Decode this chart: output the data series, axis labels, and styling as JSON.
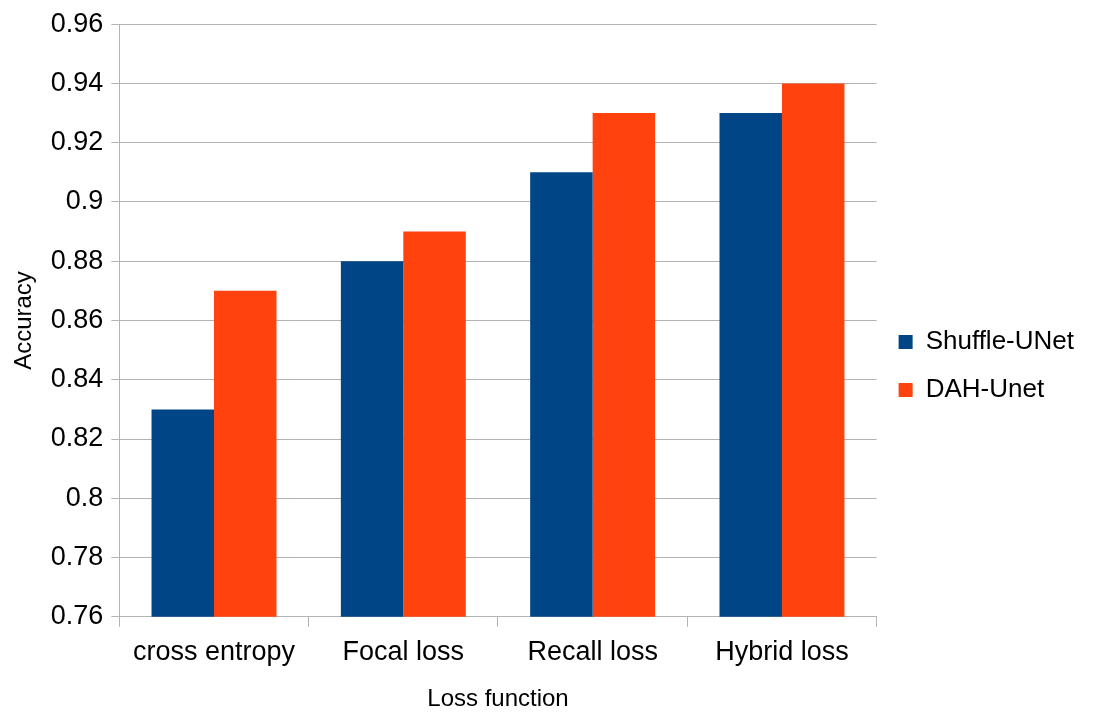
{
  "chart_data": {
    "type": "bar",
    "xlabel": "Loss function",
    "ylabel": "Accuracy",
    "categories": [
      "cross entropy",
      "Focal loss",
      "Recall loss",
      "Hybrid loss"
    ],
    "series": [
      {
        "name": "Shuffle-UNet",
        "color": "#004586",
        "values": [
          0.83,
          0.88,
          0.91,
          0.93
        ]
      },
      {
        "name": "DAH-Unet",
        "color": "#ff420e",
        "values": [
          0.87,
          0.89,
          0.93,
          0.94
        ]
      }
    ],
    "ylim": [
      0.76,
      0.96
    ],
    "yticks": [
      0.76,
      0.78,
      0.8,
      0.82,
      0.84,
      0.86,
      0.88,
      0.9,
      0.92,
      0.94,
      0.96
    ],
    "grid": "y",
    "legend": "right"
  }
}
